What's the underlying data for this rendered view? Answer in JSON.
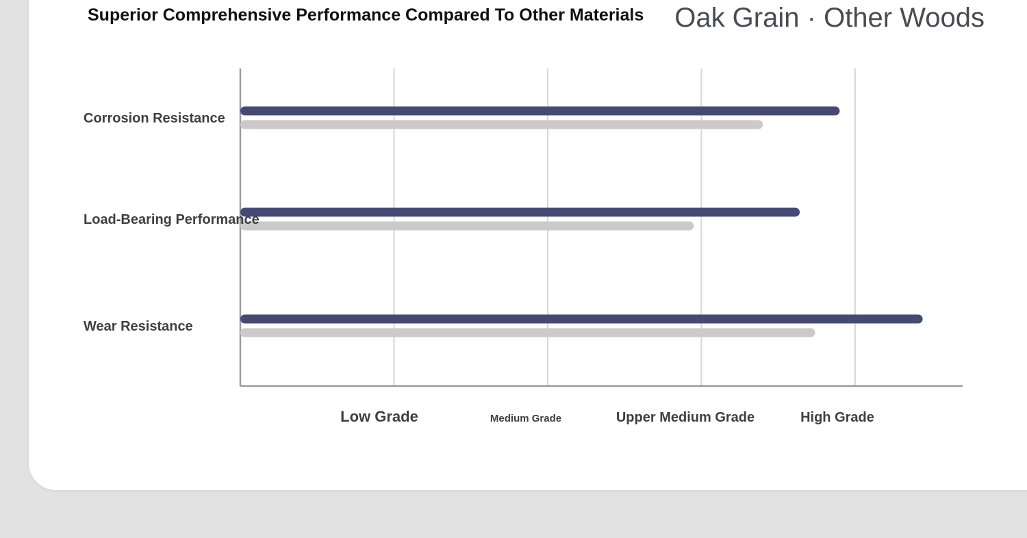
{
  "chart_data": {
    "type": "bar",
    "orientation": "horizontal",
    "title": "Superior Comprehensive Performance Compared To Other Materials",
    "legend": {
      "placement": "top-right",
      "entries": [
        "Oak Grain",
        "Other Woods"
      ],
      "separator": "·"
    },
    "categories": [
      "Corrosion Resistance",
      "Load-Bearing Performance",
      "Wear Resistance"
    ],
    "x_ticks": [
      "Low Grade",
      "Medium Grade",
      "Upper Medium Grade",
      "High Grade"
    ],
    "xlim": [
      0,
      4.7
    ],
    "grid": true,
    "series": [
      {
        "name": "Oak Grain",
        "color": "#454a75",
        "values": [
          3.9,
          3.64,
          4.44
        ]
      },
      {
        "name": "Other Woods",
        "color": "#cdc8ca",
        "values": [
          3.4,
          2.95,
          3.74
        ]
      }
    ],
    "gridline_color": "#d6d6d9",
    "axis_color": "#9a9a9e"
  }
}
